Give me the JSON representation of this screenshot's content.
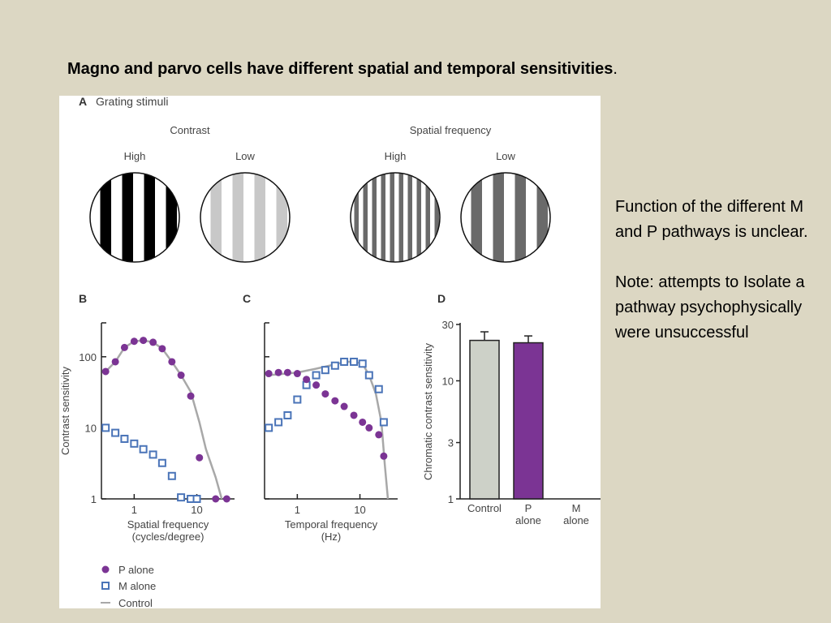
{
  "slide": {
    "title": "Magno and parvo cells have different spatial and temporal sensitivities",
    "title_period": ".",
    "note_line1": "Function of the different M and P pathways is unclear.",
    "note_line2": "Note: attempts to Isolate a pathway psychophysically were unsuccessful"
  },
  "panel_a": {
    "letter": "A",
    "title": "Grating stimuli",
    "group1": "Contrast",
    "group2": "Spatial frequency",
    "labels": [
      "High",
      "Low",
      "High",
      "Low"
    ]
  },
  "legend": {
    "p_alone": "P alone",
    "m_alone": "M alone",
    "control": "Control"
  },
  "colors": {
    "p_alone": "#7b3494",
    "m_alone": "#4a74b8",
    "control": "#a8a8a8",
    "bar_control": "#cdd1c8",
    "bar_p": "#7b3494"
  },
  "chart_data": [
    {
      "panel": "B",
      "type": "scatter",
      "xlabel": "Spatial frequency",
      "xlabel2": "(cycles/degree)",
      "ylabel": "Contrast sensitivity",
      "xscale": "log",
      "yscale": "log",
      "xlim": [
        0.3,
        40
      ],
      "ylim": [
        1,
        300
      ],
      "xticks": [
        1,
        10
      ],
      "xticklabels": [
        "1",
        "10"
      ],
      "yticks": [
        1,
        10,
        100
      ],
      "yticklabels": [
        "1",
        "10",
        "100"
      ],
      "series": [
        {
          "name": "P alone",
          "x": [
            0.35,
            0.5,
            0.7,
            1.0,
            1.4,
            2.0,
            2.8,
            4.0,
            5.6,
            8.0,
            11.0,
            20.0,
            30.0
          ],
          "y": [
            62,
            85,
            135,
            165,
            170,
            160,
            130,
            85,
            55,
            28,
            3.8,
            1.0,
            1.0
          ]
        },
        {
          "name": "M alone",
          "x": [
            0.35,
            0.5,
            0.7,
            1.0,
            1.4,
            2.0,
            2.8,
            4.0,
            5.6,
            8.0,
            10.0
          ],
          "y": [
            10,
            8.5,
            7,
            6,
            5,
            4.2,
            3.2,
            2.1,
            1.05,
            1.0,
            1.0
          ]
        },
        {
          "name": "Control",
          "x": [
            0.35,
            0.5,
            0.7,
            1.0,
            1.4,
            2.0,
            2.8,
            4.0,
            5.6,
            8.0,
            11.0,
            14.0,
            20.0,
            25.0
          ],
          "y": [
            62,
            85,
            135,
            165,
            170,
            160,
            130,
            85,
            55,
            32,
            12,
            5,
            2,
            1
          ]
        }
      ]
    },
    {
      "panel": "C",
      "type": "scatter",
      "xlabel": "Temporal frequency",
      "xlabel2": "(Hz)",
      "ylabel": "",
      "xscale": "log",
      "yscale": "log",
      "xlim": [
        0.3,
        40
      ],
      "ylim": [
        1,
        300
      ],
      "xticks": [
        1,
        10
      ],
      "xticklabels": [
        "1",
        "10"
      ],
      "yticks": [
        1,
        10,
        100
      ],
      "yticklabels": [
        "",
        "",
        ""
      ],
      "series": [
        {
          "name": "P alone",
          "x": [
            0.35,
            0.5,
            0.7,
            1.0,
            1.4,
            2.0,
            2.8,
            4.0,
            5.6,
            8.0,
            11.0,
            14.0,
            20.0,
            24.0
          ],
          "y": [
            58,
            60,
            60,
            58,
            48,
            40,
            30,
            24,
            20,
            15,
            12,
            10,
            8,
            4
          ]
        },
        {
          "name": "M alone",
          "x": [
            0.35,
            0.5,
            0.7,
            1.0,
            1.4,
            2.0,
            2.8,
            4.0,
            5.6,
            8.0,
            11.0,
            14.0,
            20.0,
            24.0
          ],
          "y": [
            10,
            12,
            15,
            25,
            40,
            55,
            65,
            75,
            85,
            85,
            80,
            55,
            35,
            12
          ]
        },
        {
          "name": "Control",
          "x": [
            0.35,
            1.0,
            2.0,
            4.0,
            6.0,
            8.0,
            11.0,
            14.0,
            18.0,
            22.0,
            25.0,
            28.0
          ],
          "y": [
            55,
            60,
            68,
            78,
            85,
            85,
            80,
            55,
            30,
            12,
            3,
            1
          ]
        }
      ]
    },
    {
      "panel": "D",
      "type": "bar",
      "ylabel": "Chromatic contrast sensitivity",
      "yscale": "log",
      "ylim": [
        1,
        30
      ],
      "yticks": [
        1,
        3,
        10,
        30
      ],
      "yticklabels": [
        "1",
        "3",
        "10",
        "30"
      ],
      "categories": [
        "Control",
        "P alone",
        "M alone"
      ],
      "category_lines": [
        [
          "Control"
        ],
        [
          "P",
          "alone"
        ],
        [
          "M",
          "alone"
        ]
      ],
      "values": [
        22,
        21,
        null
      ],
      "errors": [
        4,
        3,
        null
      ]
    }
  ]
}
